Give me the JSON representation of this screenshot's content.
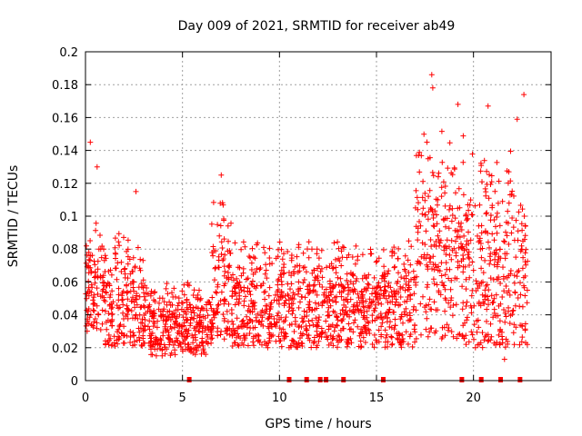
{
  "chart_data": {
    "type": "scatter",
    "title": "Day 009 of 2021, SRMTID for receiver ab49",
    "xlabel": "GPS time / hours",
    "ylabel": "SRMTID / TECUs",
    "xlim": [
      0,
      24
    ],
    "ylim": [
      0,
      0.2
    ],
    "grid": true,
    "marker": "+",
    "series": [
      {
        "name": "SRMTID",
        "color": "#ff0000",
        "points_sample": [
          {
            "x": 0.25,
            "y": 0.145
          },
          {
            "x": 0.6,
            "y": 0.13
          },
          {
            "x": 2.6,
            "y": 0.115
          },
          {
            "x": 7.0,
            "y": 0.125
          },
          {
            "x": 17.85,
            "y": 0.186
          },
          {
            "x": 17.9,
            "y": 0.178
          },
          {
            "x": 19.2,
            "y": 0.168
          },
          {
            "x": 20.75,
            "y": 0.167
          },
          {
            "x": 22.6,
            "y": 0.174
          },
          {
            "x": 22.25,
            "y": 0.159
          },
          {
            "x": 20.1,
            "y": 0.02
          },
          {
            "x": 21.6,
            "y": 0.013
          }
        ],
        "envelope": [
          {
            "x_start": 0.0,
            "x_end": 1.0,
            "y_low": 0.03,
            "y_high": 0.1
          },
          {
            "x_start": 1.0,
            "x_end": 3.0,
            "y_low": 0.02,
            "y_high": 0.09
          },
          {
            "x_start": 3.0,
            "x_end": 6.5,
            "y_low": 0.015,
            "y_high": 0.06
          },
          {
            "x_start": 6.5,
            "x_end": 7.5,
            "y_low": 0.025,
            "y_high": 0.11
          },
          {
            "x_start": 7.5,
            "x_end": 13.0,
            "y_low": 0.02,
            "y_high": 0.085
          },
          {
            "x_start": 13.0,
            "x_end": 17.0,
            "y_low": 0.02,
            "y_high": 0.085
          },
          {
            "x_start": 17.0,
            "x_end": 19.5,
            "y_low": 0.025,
            "y_high": 0.16
          },
          {
            "x_start": 19.5,
            "x_end": 22.8,
            "y_low": 0.02,
            "y_high": 0.14
          }
        ]
      }
    ],
    "gap_markers_x": [
      5.35,
      10.5,
      11.4,
      12.1,
      12.4,
      13.3,
      15.35,
      19.4,
      20.4,
      21.4,
      22.4
    ],
    "xticks": [
      "0",
      "5",
      "10",
      "15",
      "20"
    ],
    "xtick_values": [
      0,
      5,
      10,
      15,
      20
    ],
    "yticks": [
      "0",
      "0.02",
      "0.04",
      "0.06",
      "0.08",
      "0.1",
      "0.12",
      "0.14",
      "0.16",
      "0.18",
      "0.2"
    ],
    "ytick_values": [
      0,
      0.02,
      0.04,
      0.06,
      0.08,
      0.1,
      0.12,
      0.14,
      0.16,
      0.18,
      0.2
    ]
  },
  "colors": {
    "series": "#ff0000",
    "grid": "#a0a0a0",
    "axis": "#000000"
  }
}
